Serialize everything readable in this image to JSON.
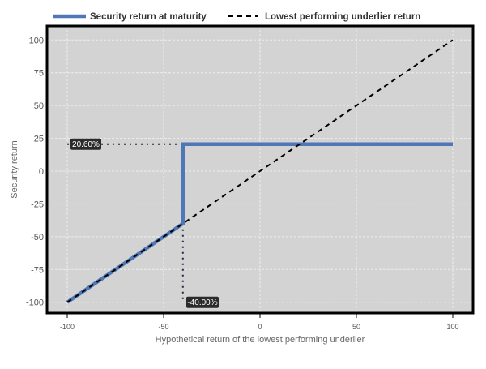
{
  "chart_data": {
    "type": "line",
    "title": "",
    "xlabel": "Hypothetical return of the lowest performing underlier",
    "ylabel": "Security return",
    "xlim": [
      -105,
      105
    ],
    "ylim": [
      -108,
      111
    ],
    "x_ticks": [
      -100,
      -50,
      0,
      50,
      100
    ],
    "y_ticks": [
      100,
      75,
      50,
      25,
      0,
      -25,
      -50,
      -75,
      -100
    ],
    "x_tick_labels": [
      "-100",
      "-50",
      "0",
      "50",
      "100"
    ],
    "y_tick_labels": [
      "100",
      "75",
      "50",
      "25",
      "0",
      "-25",
      "-50",
      "-75",
      "-100"
    ],
    "grid": true,
    "legend_position": "top",
    "series": [
      {
        "name": "Security return at maturity",
        "style": "solid",
        "color": "#4f76b5",
        "points": [
          [
            -100,
            -100
          ],
          [
            -40,
            -40
          ],
          [
            -40,
            20.6
          ],
          [
            100,
            20.6
          ]
        ]
      },
      {
        "name": "Lowest performing underlier return",
        "style": "dashed",
        "color": "#000000",
        "points": [
          [
            -100,
            -100
          ],
          [
            100,
            100
          ]
        ]
      }
    ],
    "annotations": [
      {
        "text": "20.60%",
        "x": -100,
        "y": 20.6,
        "guide": "horizontal-dotted"
      },
      {
        "text": "-40.00%",
        "x": -40,
        "y": -100,
        "guide": "vertical-dotted"
      }
    ],
    "colors": {
      "plot_background": "#d3d3d3",
      "frame": "#000000",
      "grid": "#eeeeee",
      "annotation_bg": "#2b2b2b"
    }
  }
}
